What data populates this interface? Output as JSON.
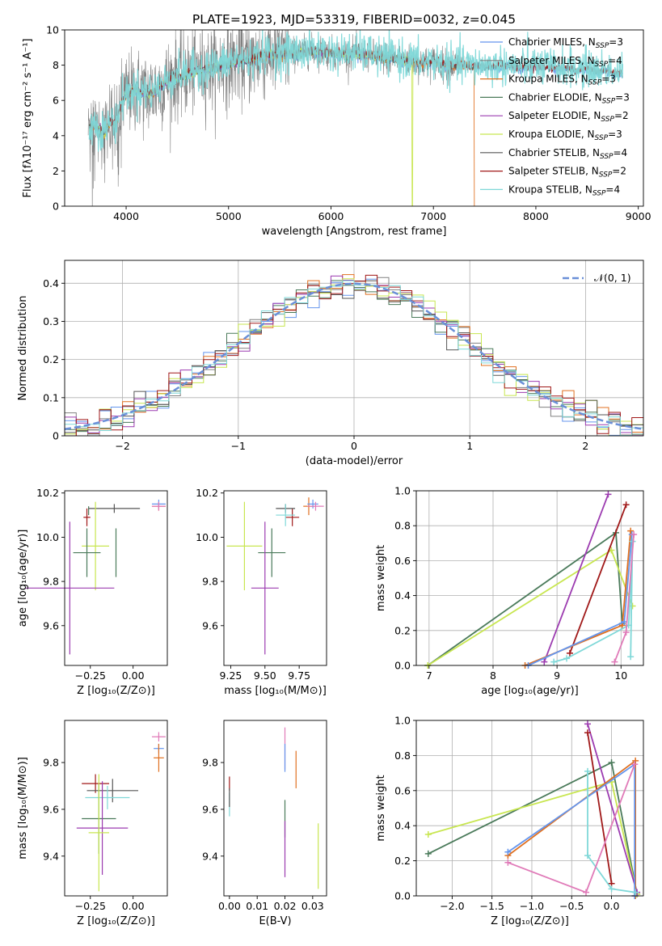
{
  "title": "PLATE=1923, MJD=53319, FIBERID=0032, z=0.045",
  "colors": {
    "chabrier_miles": "#6495ed",
    "salpeter_miles": "#808080",
    "kroupa_miles": "#e07020",
    "chabrier_elodie": "#4a7a5a",
    "salpeter_elodie": "#9c3bb0",
    "kroupa_elodie": "#c8e650",
    "chabrier_stelib": "#555555",
    "salpeter_stelib": "#a01818",
    "kroupa_stelib": "#7fd8d8",
    "pink_series": "#e07ab8"
  },
  "chart_data": [
    {
      "id": "spectrum",
      "type": "line",
      "xlabel": "wavelength [Angstrom, rest frame]",
      "ylabel": "Flux [fλ10⁻¹⁷ erg cm⁻² s⁻¹ A⁻¹]",
      "xlim": [
        3400,
        9050
      ],
      "ylim": [
        0,
        10
      ],
      "xticks": [
        4000,
        5000,
        6000,
        7000,
        8000,
        9000
      ],
      "yticks": [
        0,
        2,
        4,
        6,
        8,
        10
      ],
      "legend_position": "top-right",
      "legend": [
        {
          "label": "Chabrier MILES, N_SSP=3",
          "color_key": "chabrier_miles"
        },
        {
          "label": "Salpeter MILES, N_SSP=4",
          "color_key": "salpeter_miles"
        },
        {
          "label": "Kroupa MILES, N_SSP=3",
          "color_key": "kroupa_miles"
        },
        {
          "label": "Chabrier ELODIE, N_SSP=3",
          "color_key": "chabrier_elodie"
        },
        {
          "label": "Salpeter ELODIE, N_SSP=2",
          "color_key": "salpeter_elodie"
        },
        {
          "label": "Kroupa ELODIE, N_SSP=3",
          "color_key": "kroupa_elodie"
        },
        {
          "label": "Chabrier STELIB, N_SSP=4",
          "color_key": "chabrier_stelib"
        },
        {
          "label": "Salpeter STELIB, N_SSP=2",
          "color_key": "salpeter_stelib"
        },
        {
          "label": "Kroupa STELIB, N_SSP=4",
          "color_key": "kroupa_stelib"
        }
      ],
      "continuum": [
        [
          3640,
          4.4
        ],
        [
          3700,
          4.6
        ],
        [
          3750,
          4.3
        ],
        [
          3800,
          4.2
        ],
        [
          3850,
          4.9
        ],
        [
          3900,
          4.6
        ],
        [
          3950,
          5.8
        ],
        [
          4000,
          6.3
        ],
        [
          4100,
          6.6
        ],
        [
          4200,
          6.4
        ],
        [
          4300,
          6.6
        ],
        [
          4400,
          7.1
        ],
        [
          4500,
          7.4
        ],
        [
          4600,
          7.5
        ],
        [
          4700,
          7.7
        ],
        [
          4800,
          7.8
        ],
        [
          4900,
          7.9
        ],
        [
          5000,
          8.1
        ],
        [
          5100,
          8.3
        ],
        [
          5200,
          8.2
        ],
        [
          5300,
          8.5
        ],
        [
          5400,
          8.6
        ],
        [
          5500,
          8.6
        ],
        [
          5600,
          8.7
        ],
        [
          5700,
          8.7
        ],
        [
          5800,
          8.8
        ],
        [
          5900,
          8.8
        ],
        [
          6000,
          8.7
        ],
        [
          6100,
          8.6
        ],
        [
          6200,
          8.7
        ],
        [
          6300,
          8.6
        ],
        [
          6400,
          8.6
        ],
        [
          6500,
          8.4
        ],
        [
          6600,
          8.4
        ],
        [
          6700,
          8.3
        ],
        [
          6800,
          8.2
        ],
        [
          6900,
          8.1
        ],
        [
          7000,
          8.2
        ],
        [
          7100,
          8.0
        ],
        [
          7200,
          8.0
        ],
        [
          7300,
          8.0
        ],
        [
          7400,
          7.9
        ],
        [
          7500,
          7.95
        ],
        [
          7600,
          7.9
        ],
        [
          7700,
          7.95
        ],
        [
          7800,
          7.9
        ],
        [
          7900,
          7.85
        ],
        [
          8000,
          7.9
        ],
        [
          8100,
          7.85
        ],
        [
          8200,
          7.8
        ],
        [
          8300,
          7.85
        ],
        [
          8400,
          7.7
        ],
        [
          8500,
          7.8
        ],
        [
          8600,
          7.6
        ],
        [
          8700,
          7.7
        ],
        [
          8800,
          7.5
        ]
      ],
      "observed_range": [
        3630,
        7300
      ],
      "model_cutoffs": {
        "kroupa_elodie_drop": 6790,
        "kroupa_miles_drop": 7400
      }
    },
    {
      "id": "residuals",
      "type": "line",
      "xlabel": "(data-model)/error",
      "ylabel": "Normed distribution",
      "xlim": [
        -2.5,
        2.5
      ],
      "ylim": [
        0,
        0.46
      ],
      "xticks": [
        -2,
        -1,
        0,
        1,
        2
      ],
      "xtick_labels": [
        "−2",
        "−1",
        "0",
        "1",
        "2"
      ],
      "yticks": [
        0.0,
        0.1,
        0.2,
        0.3,
        0.4
      ],
      "grid": true,
      "legend_position": "top-right",
      "gaussian_label": "𝒩(0, 1)",
      "bin_width": 0.1
    },
    {
      "id": "z-vs-age",
      "type": "scatter",
      "xlabel": "Z [log₁₀(Z/Z⊙)]",
      "ylabel": "age  [log₁₀(age/yr)]",
      "xlim": [
        -0.4,
        0.2
      ],
      "ylim": [
        9.42,
        10.21
      ],
      "xticks": [
        -0.25,
        0.0
      ],
      "xtick_labels": [
        "−0.25",
        "0.00"
      ],
      "yticks": [
        9.6,
        9.8,
        10.0,
        10.2
      ],
      "ytick_labels": [
        "9.6",
        "9.8",
        "10.0",
        "10.2"
      ],
      "points": [
        {
          "color_key": "salpeter_stelib",
          "x": -0.27,
          "xerr": 0.02,
          "y": 10.09,
          "yerr": 0.04
        },
        {
          "color_key": "chabrier_elodie",
          "x": -0.26,
          "xerr": 0.0,
          "y": 10.12,
          "yerr": 0.02
        },
        {
          "color_key": "chabrier_stelib",
          "x": -0.11,
          "xerr": 0.15,
          "y": 10.13,
          "yerr": 0.02
        },
        {
          "color_key": "kroupa_miles",
          "x": 0.15,
          "xerr": 0.04,
          "y": 10.14,
          "yerr": 0.02
        },
        {
          "color_key": "chabrier_miles",
          "x": 0.15,
          "xerr": 0.04,
          "y": 10.15,
          "yerr": 0.02
        },
        {
          "color_key": "pink_series",
          "x": 0.15,
          "xerr": 0.04,
          "y": 10.14,
          "yerr": 0.02
        },
        {
          "color_key": "kroupa_elodie",
          "x": -0.22,
          "xerr": 0.08,
          "y": 9.96,
          "yerr": 0.2
        },
        {
          "color_key": "chabrier_elodie",
          "x": -0.27,
          "xerr": 0.08,
          "y": 9.93,
          "yerr": 0.11
        },
        {
          "color_key": "chabrier_elodie",
          "x": -0.1,
          "xerr": 0.0,
          "y": 9.93,
          "yerr": 0.11
        },
        {
          "color_key": "salpeter_elodie",
          "x": -0.37,
          "xerr": 0.26,
          "y": 9.77,
          "yerr": 0.3
        }
      ]
    },
    {
      "id": "mass-vs-age",
      "type": "scatter",
      "xlabel": "mass [log₁₀(M/M⊙)]",
      "ylabel": "",
      "xlim": [
        9.2,
        9.95
      ],
      "ylim": [
        9.42,
        10.21
      ],
      "xticks": [
        9.25,
        9.5,
        9.75
      ],
      "xtick_labels": [
        "9.25",
        "9.50",
        "9.75"
      ],
      "yticks": [
        9.6,
        9.8,
        10.0,
        10.2
      ],
      "ytick_labels": [
        "9.6",
        "9.8",
        "10.0",
        "10.2"
      ],
      "points": [
        {
          "color_key": "salpeter_stelib",
          "x": 9.7,
          "xerr": 0.05,
          "y": 10.09,
          "yerr": 0.04
        },
        {
          "color_key": "chabrier_stelib",
          "x": 9.65,
          "xerr": 0.07,
          "y": 10.13,
          "yerr": 0.02
        },
        {
          "color_key": "kroupa_stelib",
          "x": 9.65,
          "xerr": 0.07,
          "y": 10.1,
          "yerr": 0.05
        },
        {
          "color_key": "kroupa_miles",
          "x": 9.82,
          "xerr": 0.04,
          "y": 10.14,
          "yerr": 0.04
        },
        {
          "color_key": "chabrier_miles",
          "x": 9.85,
          "xerr": 0.04,
          "y": 10.15,
          "yerr": 0.02
        },
        {
          "color_key": "pink_series",
          "x": 9.87,
          "xerr": 0.06,
          "y": 10.14,
          "yerr": 0.02
        },
        {
          "color_key": "kroupa_elodie",
          "x": 9.35,
          "xerr": 0.13,
          "y": 9.96,
          "yerr": 0.2
        },
        {
          "color_key": "chabrier_elodie",
          "x": 9.55,
          "xerr": 0.1,
          "y": 9.93,
          "yerr": 0.11
        },
        {
          "color_key": "salpeter_elodie",
          "x": 9.5,
          "xerr": 0.1,
          "y": 9.77,
          "yerr": 0.3
        }
      ]
    },
    {
      "id": "age-vs-weight",
      "type": "line",
      "xlabel": "age  [log₁₀(age/yr)]",
      "ylabel": "mass weight",
      "xlim": [
        6.8,
        10.35
      ],
      "ylim": [
        0,
        1
      ],
      "xticks": [
        7,
        8,
        9,
        10
      ],
      "yticks": [
        0.0,
        0.2,
        0.4,
        0.6,
        0.8,
        1.0
      ],
      "ytick_labels": [
        "0.0",
        "0.2",
        "0.4",
        "0.6",
        "0.8",
        "1.0"
      ],
      "grid": true,
      "series": [
        {
          "color_key": "chabrier_elodie",
          "x": [
            6.98,
            9.92,
            10.02
          ],
          "y": [
            0.0,
            0.76,
            0.24
          ]
        },
        {
          "color_key": "kroupa_elodie",
          "x": [
            6.98,
            9.85,
            10.18
          ],
          "y": [
            0.0,
            0.66,
            0.34
          ]
        },
        {
          "color_key": "salpeter_elodie",
          "x": [
            8.8,
            9.8
          ],
          "y": [
            0.02,
            0.98
          ]
        },
        {
          "color_key": "salpeter_stelib",
          "x": [
            9.2,
            10.08
          ],
          "y": [
            0.07,
            0.92
          ]
        },
        {
          "color_key": "kroupa_miles",
          "x": [
            8.5,
            10.02,
            10.15
          ],
          "y": [
            0.0,
            0.23,
            0.77
          ]
        },
        {
          "color_key": "chabrier_miles",
          "x": [
            8.55,
            10.05,
            10.17
          ],
          "y": [
            0.0,
            0.25,
            0.75
          ]
        },
        {
          "color_key": "kroupa_stelib",
          "x": [
            8.95,
            9.15,
            10.12,
            10.18,
            10.15
          ],
          "y": [
            0.02,
            0.04,
            0.23,
            0.71,
            0.05
          ]
        },
        {
          "color_key": "pink_series",
          "x": [
            9.9,
            10.08,
            10.2
          ],
          "y": [
            0.02,
            0.19,
            0.75
          ]
        }
      ]
    },
    {
      "id": "z-vs-mass",
      "type": "scatter",
      "xlabel": "Z [log₁₀(Z/Z⊙)]",
      "ylabel": "mass [log₁₀(M/M⊙)]",
      "xlim": [
        -0.4,
        0.2
      ],
      "ylim": [
        9.23,
        9.98
      ],
      "xticks": [
        -0.25,
        0.0
      ],
      "xtick_labels": [
        "−0.25",
        "0.00"
      ],
      "yticks": [
        9.4,
        9.6,
        9.8
      ],
      "ytick_labels": [
        "9.4",
        "9.6",
        "9.8"
      ],
      "points": [
        {
          "color_key": "pink_series",
          "x": 0.15,
          "xerr": 0.04,
          "y": 9.91,
          "yerr": 0.02
        },
        {
          "color_key": "chabrier_miles",
          "x": 0.15,
          "xerr": 0.03,
          "y": 9.86,
          "yerr": 0.02
        },
        {
          "color_key": "kroupa_miles",
          "x": 0.15,
          "xerr": 0.03,
          "y": 9.82,
          "yerr": 0.06
        },
        {
          "color_key": "salpeter_stelib",
          "x": -0.22,
          "xerr": 0.08,
          "y": 9.71,
          "yerr": 0.04
        },
        {
          "color_key": "chabrier_stelib",
          "x": -0.12,
          "xerr": 0.15,
          "y": 9.68,
          "yerr": 0.05
        },
        {
          "color_key": "kroupa_stelib",
          "x": -0.15,
          "xerr": 0.13,
          "y": 9.65,
          "yerr": 0.05
        },
        {
          "color_key": "chabrier_elodie",
          "x": -0.2,
          "xerr": 0.1,
          "y": 9.56,
          "yerr": 0.15
        },
        {
          "color_key": "salpeter_elodie",
          "x": -0.18,
          "xerr": 0.15,
          "y": 9.52,
          "yerr": 0.2
        },
        {
          "color_key": "kroupa_elodie",
          "x": -0.2,
          "xerr": 0.06,
          "y": 9.5,
          "yerr": 0.25
        }
      ]
    },
    {
      "id": "ebv-vs-mass",
      "type": "scatter",
      "xlabel": "E(B-V)",
      "ylabel": "",
      "xlim": [
        -0.002,
        0.035
      ],
      "ylim": [
        9.23,
        9.98
      ],
      "xticks": [
        0.0,
        0.01,
        0.02,
        0.03
      ],
      "xtick_labels": [
        "0.00",
        "0.01",
        "0.02",
        "0.03"
      ],
      "yticks": [
        9.4,
        9.6,
        9.8
      ],
      "ytick_labels": [
        "9.4",
        "9.6",
        "9.8"
      ],
      "points": [
        {
          "color_key": "salpeter_stelib",
          "x": 0.0,
          "y": 9.71,
          "yerr": 0.03
        },
        {
          "color_key": "kroupa_stelib",
          "x": 0.0,
          "y": 9.62,
          "yerr": 0.05
        },
        {
          "color_key": "chabrier_stelib",
          "x": 0.0,
          "y": 9.65,
          "yerr": 0.04
        },
        {
          "color_key": "pink_series",
          "x": 0.02,
          "y": 9.86,
          "yerr": 0.09
        },
        {
          "color_key": "chabrier_miles",
          "x": 0.02,
          "y": 9.82,
          "yerr": 0.06
        },
        {
          "color_key": "kroupa_miles",
          "x": 0.024,
          "y": 9.77,
          "yerr": 0.08
        },
        {
          "color_key": "chabrier_elodie",
          "x": 0.02,
          "y": 9.56,
          "yerr": 0.08
        },
        {
          "color_key": "salpeter_elodie",
          "x": 0.02,
          "y": 9.43,
          "yerr": 0.12
        },
        {
          "color_key": "kroupa_elodie",
          "x": 0.032,
          "y": 9.4,
          "yerr": 0.14
        }
      ]
    },
    {
      "id": "z-vs-weight",
      "type": "line",
      "xlabel": "Z [log₁₀(Z/Z⊙)]",
      "ylabel": "mass weight",
      "xlim": [
        -2.45,
        0.4
      ],
      "ylim": [
        0,
        1
      ],
      "xticks": [
        -2.0,
        -1.5,
        -1.0,
        -0.5,
        0.0
      ],
      "xtick_labels": [
        "−2.0",
        "−1.5",
        "−1.0",
        "−0.5",
        "0.0"
      ],
      "yticks": [
        0.0,
        0.2,
        0.4,
        0.6,
        0.8,
        1.0
      ],
      "ytick_labels": [
        "0.0",
        "0.2",
        "0.4",
        "0.6",
        "0.8",
        "1.0"
      ],
      "grid": true,
      "series": [
        {
          "color_key": "chabrier_elodie",
          "x": [
            -2.3,
            0.0,
            0.32
          ],
          "y": [
            0.24,
            0.76,
            0.01
          ]
        },
        {
          "color_key": "kroupa_elodie",
          "x": [
            -2.3,
            0.0,
            0.32
          ],
          "y": [
            0.35,
            0.65,
            0.01
          ]
        },
        {
          "color_key": "salpeter_elodie",
          "x": [
            -0.3,
            0.32
          ],
          "y": [
            0.98,
            0.02
          ]
        },
        {
          "color_key": "salpeter_stelib",
          "x": [
            -0.3,
            0.0
          ],
          "y": [
            0.93,
            0.07
          ]
        },
        {
          "color_key": "kroupa_miles",
          "x": [
            -1.3,
            0.3,
            0.3
          ],
          "y": [
            0.23,
            0.77,
            0.0
          ]
        },
        {
          "color_key": "chabrier_miles",
          "x": [
            -1.3,
            0.29,
            0.29
          ],
          "y": [
            0.25,
            0.75,
            0.0
          ]
        },
        {
          "color_key": "kroupa_stelib",
          "x": [
            -0.3,
            -0.3,
            0.0,
            0.3
          ],
          "y": [
            0.71,
            0.23,
            0.04,
            0.02
          ]
        },
        {
          "color_key": "pink_series",
          "x": [
            -1.3,
            -0.32,
            0.29
          ],
          "y": [
            0.19,
            0.02,
            0.75
          ]
        }
      ]
    }
  ]
}
